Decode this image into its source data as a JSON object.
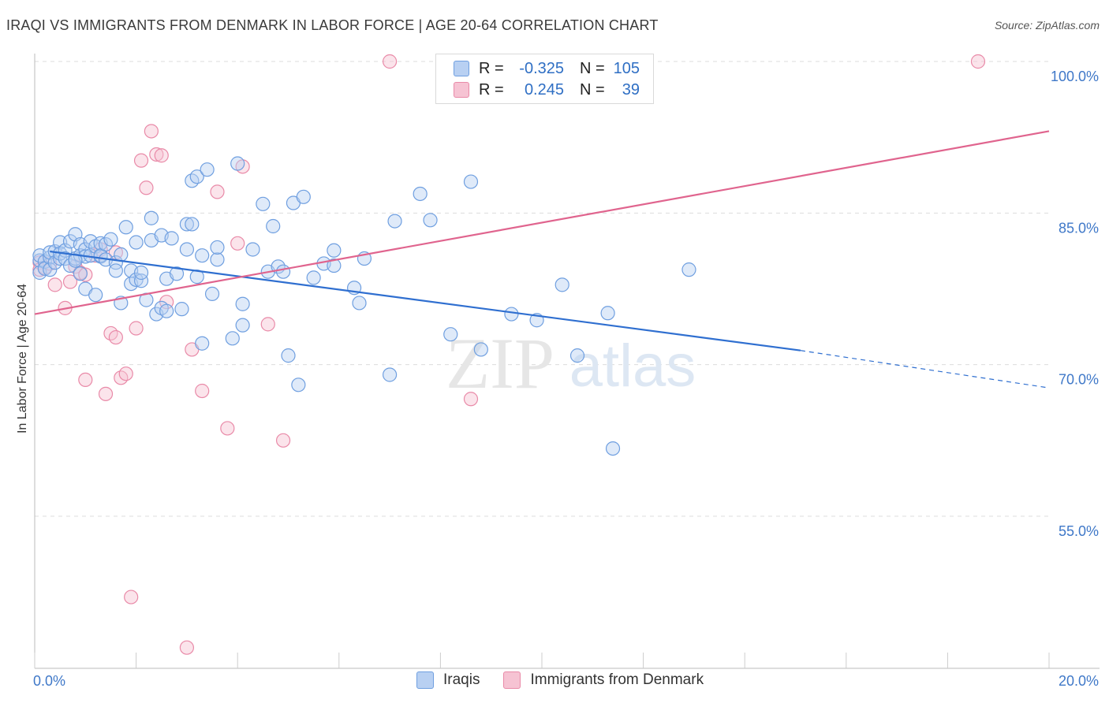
{
  "chart_data": {
    "type": "scatter",
    "title": "IRAQI VS IMMIGRANTS FROM DENMARK IN LABOR FORCE | AGE 20-64 CORRELATION CHART",
    "source": "Source: ZipAtlas.com",
    "watermark": {
      "zip": "ZIP",
      "atlas": "atlas"
    },
    "ylabel": "In Labor Force | Age 20-64",
    "xlim": [
      0,
      20
    ],
    "ylim": [
      40,
      102
    ],
    "x_ticks": [
      {
        "value": 0,
        "label": "0.0%"
      },
      {
        "value": 20,
        "label": "20.0%"
      }
    ],
    "y_ticks": [
      {
        "value": 55,
        "label": "55.0%"
      },
      {
        "value": 70,
        "label": "70.0%"
      },
      {
        "value": 85,
        "label": "85.0%"
      },
      {
        "value": 100,
        "label": "100.0%"
      }
    ],
    "legend": {
      "rows": [
        {
          "r_label": "R =",
          "r_value": "-0.325",
          "n_label": "N =",
          "n_value": "105"
        },
        {
          "r_label": "R =",
          "r_value": "0.245",
          "n_label": "N =",
          "n_value": "39"
        }
      ]
    },
    "series": [
      {
        "name": "Iraqis",
        "color": "#6f9fe0",
        "fill": "#b8d0f2",
        "line_color": "#2f6fd0",
        "trend": {
          "x_start": 0.3,
          "y_start": 81.2,
          "x_solid_end": 15.1,
          "y_solid_end": 71.4,
          "x_dash_end": 20.0,
          "y_dash_end": 67.7
        },
        "points": [
          [
            0.1,
            80.3
          ],
          [
            0.1,
            79.1
          ],
          [
            0.1,
            80.8
          ],
          [
            0.2,
            80.2
          ],
          [
            0.2,
            79.5
          ],
          [
            0.3,
            80.6
          ],
          [
            0.3,
            81.1
          ],
          [
            0.3,
            79.4
          ],
          [
            0.4,
            81.2
          ],
          [
            0.4,
            80.1
          ],
          [
            0.5,
            80.5
          ],
          [
            0.5,
            82.1
          ],
          [
            0.5,
            81.0
          ],
          [
            0.6,
            81.3
          ],
          [
            0.6,
            80.5
          ],
          [
            0.7,
            82.2
          ],
          [
            0.7,
            79.8
          ],
          [
            0.8,
            82.9
          ],
          [
            0.8,
            80.5
          ],
          [
            0.9,
            81.9
          ],
          [
            0.9,
            80.8
          ],
          [
            0.9,
            79.0
          ],
          [
            1.0,
            81.4
          ],
          [
            1.0,
            80.7
          ],
          [
            1.0,
            77.5
          ],
          [
            1.1,
            82.2
          ],
          [
            1.1,
            80.8
          ],
          [
            1.2,
            81.7
          ],
          [
            1.2,
            76.9
          ],
          [
            1.3,
            82.0
          ],
          [
            1.3,
            80.7
          ],
          [
            1.3,
            80.8
          ],
          [
            1.4,
            81.9
          ],
          [
            1.4,
            80.4
          ],
          [
            1.5,
            82.4
          ],
          [
            1.6,
            80.1
          ],
          [
            1.6,
            79.3
          ],
          [
            1.7,
            76.1
          ],
          [
            1.7,
            80.9
          ],
          [
            1.8,
            83.6
          ],
          [
            1.9,
            78.0
          ],
          [
            1.9,
            79.3
          ],
          [
            2.0,
            82.1
          ],
          [
            2.0,
            78.4
          ],
          [
            2.1,
            78.3
          ],
          [
            2.1,
            79.1
          ],
          [
            2.2,
            76.4
          ],
          [
            2.3,
            84.5
          ],
          [
            2.3,
            82.3
          ],
          [
            2.4,
            75.0
          ],
          [
            2.5,
            82.8
          ],
          [
            2.5,
            75.6
          ],
          [
            2.6,
            78.5
          ],
          [
            2.6,
            75.3
          ],
          [
            2.7,
            82.5
          ],
          [
            2.8,
            79.0
          ],
          [
            2.9,
            75.5
          ],
          [
            3.0,
            83.9
          ],
          [
            3.0,
            81.4
          ],
          [
            3.1,
            88.2
          ],
          [
            3.1,
            83.9
          ],
          [
            3.2,
            88.6
          ],
          [
            3.2,
            78.7
          ],
          [
            3.3,
            80.8
          ],
          [
            3.3,
            72.1
          ],
          [
            3.4,
            89.3
          ],
          [
            3.5,
            77.0
          ],
          [
            3.6,
            80.4
          ],
          [
            3.6,
            81.6
          ],
          [
            3.9,
            72.6
          ],
          [
            4.0,
            89.9
          ],
          [
            4.1,
            73.9
          ],
          [
            4.1,
            76.0
          ],
          [
            4.3,
            81.4
          ],
          [
            4.5,
            85.9
          ],
          [
            4.6,
            79.2
          ],
          [
            4.7,
            83.7
          ],
          [
            4.8,
            79.7
          ],
          [
            4.9,
            79.2
          ],
          [
            5.0,
            70.9
          ],
          [
            5.1,
            86.0
          ],
          [
            5.2,
            68.0
          ],
          [
            5.3,
            86.6
          ],
          [
            5.5,
            78.6
          ],
          [
            5.7,
            80.0
          ],
          [
            5.9,
            81.3
          ],
          [
            5.9,
            79.8
          ],
          [
            6.3,
            77.6
          ],
          [
            6.4,
            76.1
          ],
          [
            6.5,
            80.5
          ],
          [
            7.0,
            69.0
          ],
          [
            7.1,
            84.2
          ],
          [
            7.6,
            86.9
          ],
          [
            7.8,
            84.3
          ],
          [
            8.2,
            73.0
          ],
          [
            8.6,
            88.1
          ],
          [
            8.8,
            71.5
          ],
          [
            9.4,
            75.0
          ],
          [
            9.9,
            74.4
          ],
          [
            10.4,
            77.9
          ],
          [
            10.7,
            70.9
          ],
          [
            11.3,
            75.1
          ],
          [
            11.4,
            61.7
          ],
          [
            12.9,
            79.4
          ],
          [
            0.8,
            80.3
          ]
        ]
      },
      {
        "name": "Immigrants from Denmark",
        "color": "#e98aa8",
        "fill": "#f6c3d3",
        "line_color": "#e0648e",
        "trend": {
          "x_start": 0.0,
          "y_start": 75.0,
          "x_solid_end": 20.0,
          "y_solid_end": 93.1
        },
        "points": [
          [
            0.1,
            80.1
          ],
          [
            0.1,
            79.4
          ],
          [
            0.2,
            79.6
          ],
          [
            0.3,
            80.0
          ],
          [
            0.4,
            77.9
          ],
          [
            0.6,
            75.6
          ],
          [
            0.7,
            78.2
          ],
          [
            0.8,
            79.7
          ],
          [
            0.9,
            79.1
          ],
          [
            1.0,
            78.9
          ],
          [
            1.0,
            68.5
          ],
          [
            1.2,
            80.8
          ],
          [
            1.3,
            81.4
          ],
          [
            1.4,
            67.1
          ],
          [
            1.5,
            73.1
          ],
          [
            1.6,
            81.1
          ],
          [
            1.6,
            72.7
          ],
          [
            1.7,
            68.7
          ],
          [
            1.8,
            69.1
          ],
          [
            1.9,
            47.0
          ],
          [
            2.0,
            73.6
          ],
          [
            2.1,
            90.2
          ],
          [
            2.2,
            87.5
          ],
          [
            2.3,
            93.1
          ],
          [
            2.4,
            90.8
          ],
          [
            2.5,
            90.7
          ],
          [
            2.6,
            76.2
          ],
          [
            3.0,
            42.0
          ],
          [
            3.1,
            71.5
          ],
          [
            3.3,
            67.4
          ],
          [
            3.6,
            87.1
          ],
          [
            3.8,
            63.7
          ],
          [
            4.0,
            82.0
          ],
          [
            4.1,
            89.6
          ],
          [
            4.6,
            74.0
          ],
          [
            4.9,
            62.5
          ],
          [
            7.0,
            100.0
          ],
          [
            8.6,
            66.6
          ],
          [
            18.6,
            100.0
          ]
        ]
      }
    ]
  }
}
